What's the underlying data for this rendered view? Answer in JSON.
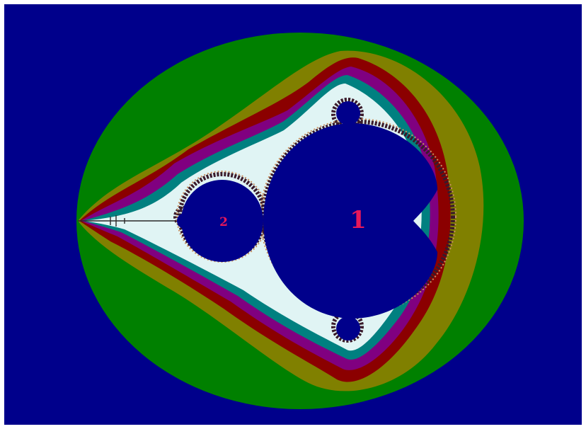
{
  "figure": {
    "labels": [
      {
        "id": "main-cardioid",
        "text": "1"
      },
      {
        "id": "period-2-bulb",
        "text": "2"
      }
    ],
    "colors": {
      "background": "#00008b",
      "band_green": "#008000",
      "band_olive": "#808000",
      "band_maroon": "#8b0000",
      "band_purple": "#800080",
      "band_teal": "#008080",
      "band_pale": "#e0f4f4",
      "set_interior": "#00008b",
      "label": "#e8185a"
    },
    "bands": [
      "green",
      "olive",
      "maroon",
      "purple",
      "teal",
      "pale"
    ]
  }
}
